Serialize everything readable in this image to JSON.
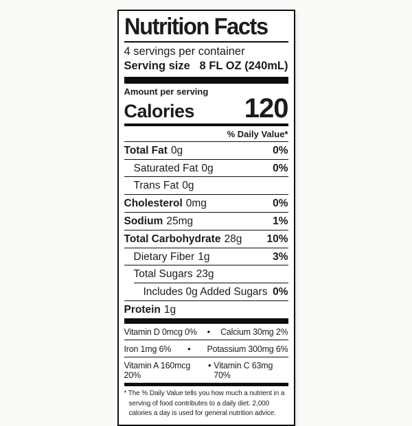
{
  "label": {
    "title": "Nutrition Facts",
    "servings_per_container": "4 servings per container",
    "serving_size_label": "Serving size",
    "serving_size_value": "8 FL OZ (240mL)",
    "amount_per_serving": "Amount per serving",
    "calories_label": "Calories",
    "calories_value": "120",
    "daily_value_header": "% Daily Value*",
    "nutrients": [
      {
        "name": "Total Fat",
        "amount": "0g",
        "dv": "0%",
        "bold": true,
        "indent": 0
      },
      {
        "name": "Saturated Fat",
        "amount": "0g",
        "dv": "0%",
        "bold": false,
        "indent": 1
      },
      {
        "name": "Trans Fat",
        "amount": "0g",
        "dv": "",
        "bold": false,
        "indent": 1
      },
      {
        "name": "Cholesterol",
        "amount": "0mg",
        "dv": "0%",
        "bold": true,
        "indent": 0
      },
      {
        "name": "Sodium",
        "amount": "25mg",
        "dv": "1%",
        "bold": true,
        "indent": 0
      },
      {
        "name": "Total Carbohydrate",
        "amount": "28g",
        "dv": "10%",
        "bold": true,
        "indent": 0
      },
      {
        "name": "Dietary Fiber",
        "amount": "1g",
        "dv": "3%",
        "bold": false,
        "indent": 1
      },
      {
        "name": "Total Sugars",
        "amount": "23g",
        "dv": "",
        "bold": false,
        "indent": 1
      },
      {
        "name": "Includes 0g Added Sugars",
        "amount": "",
        "dv": "0%",
        "bold": false,
        "indent": 2
      },
      {
        "name": "Protein",
        "amount": "1g",
        "dv": "",
        "bold": true,
        "indent": 0
      }
    ],
    "vitamins": [
      {
        "left": "Vitamin D 0mcg  0%",
        "right": "Calcium 30mg  2%"
      },
      {
        "left": "Iron 1mg  6%",
        "right": "Potassium 300mg  6%"
      },
      {
        "left": "Vitamin A 160mcg  20%",
        "right": "Vitamin C 63mg 70%"
      }
    ],
    "bullet_icon": "•",
    "footnote": "* The % Daily Value tells you how much a nutrient in a serving of food contributes to a daily diet. 2,000 calories a day is used for general nutrition advice."
  },
  "colors": {
    "text": "#1c1b19",
    "border": "#0d0d0d",
    "label_background": "#ffffff",
    "page_background": "#fbfaf7"
  }
}
